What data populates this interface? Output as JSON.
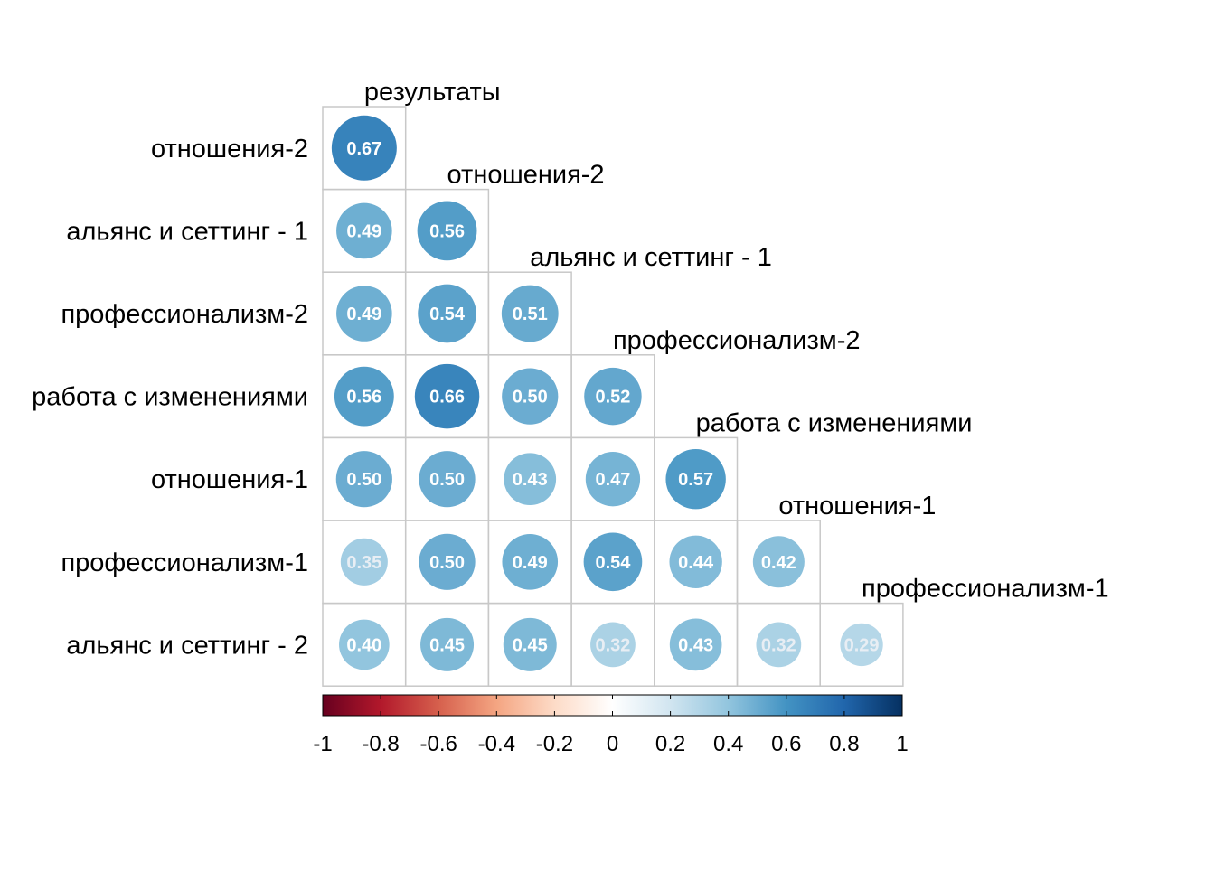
{
  "chart_data": {
    "type": "heatmap",
    "subtype": "correlation-matrix-lower-triangle-circles",
    "title": "",
    "column_labels": [
      "результаты",
      "отношения-2",
      "альянс и сеттинг - 1",
      "профессионализм-2",
      "работа с изменениями",
      "отношения-1",
      "профессионализм-1"
    ],
    "row_labels": [
      "отношения-2",
      "альянс и сеттинг - 1",
      "профессионализм-2",
      "работа с изменениями",
      "отношения-1",
      "профессионализм-1",
      "альянс и сеттинг - 2"
    ],
    "values": [
      [
        0.67
      ],
      [
        0.49,
        0.56
      ],
      [
        0.49,
        0.54,
        0.51
      ],
      [
        0.56,
        0.66,
        0.5,
        0.52
      ],
      [
        0.5,
        0.5,
        0.43,
        0.47,
        0.57
      ],
      [
        0.35,
        0.5,
        0.49,
        0.54,
        0.44,
        0.42
      ],
      [
        0.4,
        0.45,
        0.45,
        0.32,
        0.43,
        0.32,
        0.29
      ]
    ],
    "value_labels": [
      [
        "0.67"
      ],
      [
        "0.49",
        "0.56"
      ],
      [
        "0.49",
        "0.54",
        "0.51"
      ],
      [
        "0.56",
        "0.66",
        "0.50",
        "0.52"
      ],
      [
        "0.50",
        "0.50",
        "0.43",
        "0.47",
        "0.57"
      ],
      [
        "0.35",
        "0.50",
        "0.49",
        "0.54",
        "0.44",
        "0.42"
      ],
      [
        "0.40",
        "0.45",
        "0.45",
        "0.32",
        "0.43",
        "0.32",
        "0.29"
      ]
    ],
    "color_scale": {
      "range": [
        -1,
        1
      ],
      "ticks": [
        "-1",
        "-0.8",
        "-0.6",
        "-0.4",
        "-0.2",
        "0",
        "0.2",
        "0.4",
        "0.6",
        "0.8",
        "1"
      ],
      "stops": [
        "#67001F",
        "#B2182B",
        "#D6604D",
        "#F4A582",
        "#FDDBC7",
        "#FFFFFF",
        "#D1E5F0",
        "#92C5DE",
        "#4393C3",
        "#2166AC",
        "#053061"
      ],
      "legend_placement": "bottom"
    },
    "grid": true
  }
}
